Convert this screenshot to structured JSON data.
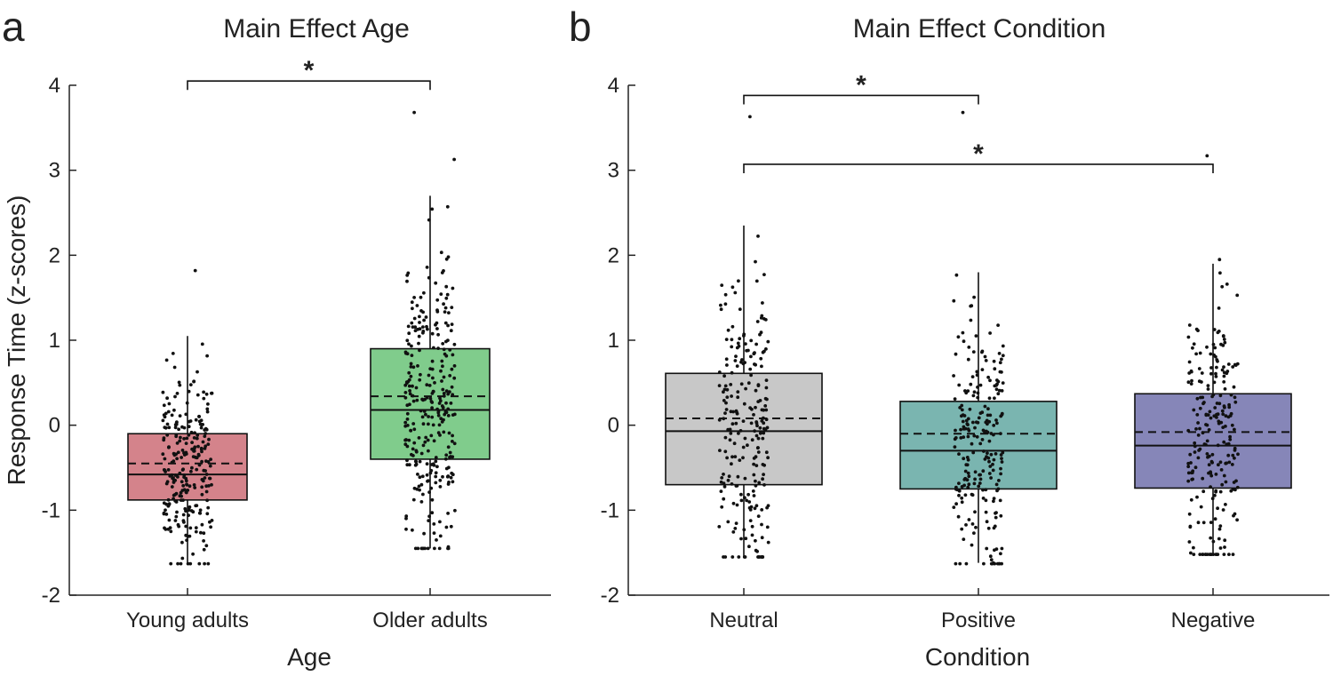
{
  "chart_data": [
    {
      "panel_label": "a",
      "type": "box",
      "title": "Main Effect Age",
      "xlabel": "Age",
      "ylabel": "Response Time (z-scores)",
      "ylim": [
        -2,
        4
      ],
      "yticks": [
        -2,
        -1,
        0,
        1,
        2,
        3,
        4
      ],
      "categories": [
        "Young adults",
        "Older adults"
      ],
      "boxes": [
        {
          "name": "Young adults",
          "color": "#d4838b",
          "q1": -0.88,
          "median": -0.58,
          "mean": -0.45,
          "q3": -0.1,
          "whisker_low": -1.62,
          "whisker_high": 1.05,
          "n_points": 260,
          "point_max": 1.82,
          "point_min": -1.63
        },
        {
          "name": "Older adults",
          "color": "#80cc8c",
          "q1": -0.4,
          "median": 0.18,
          "mean": 0.34,
          "q3": 0.9,
          "whisker_low": -1.45,
          "whisker_high": 2.7,
          "n_points": 300,
          "point_max": 3.68,
          "point_min": -1.45
        }
      ],
      "significance": [
        {
          "from": 0,
          "to": 1,
          "y": 4.05,
          "label": "*"
        }
      ]
    },
    {
      "panel_label": "b",
      "type": "box",
      "title": "Main Effect Condition",
      "xlabel": "Condition",
      "ylabel": "",
      "ylim": [
        -2,
        4
      ],
      "yticks": [
        -2,
        -1,
        0,
        1,
        2,
        3,
        4
      ],
      "categories": [
        "Neutral",
        "Positive",
        "Negative"
      ],
      "boxes": [
        {
          "name": "Neutral",
          "color": "#c8c8c8",
          "q1": -0.7,
          "median": -0.07,
          "mean": 0.08,
          "q3": 0.61,
          "whisker_low": -1.55,
          "whisker_high": 2.35,
          "n_points": 230,
          "point_max": 3.63,
          "point_min": -1.55
        },
        {
          "name": "Positive",
          "color": "#7ab5b0",
          "q1": -0.75,
          "median": -0.3,
          "mean": -0.1,
          "q3": 0.28,
          "whisker_low": -1.62,
          "whisker_high": 1.8,
          "n_points": 230,
          "point_max": 3.68,
          "point_min": -1.63
        },
        {
          "name": "Negative",
          "color": "#8686b8",
          "q1": -0.74,
          "median": -0.24,
          "mean": -0.08,
          "q3": 0.37,
          "whisker_low": -1.52,
          "whisker_high": 1.9,
          "n_points": 230,
          "point_max": 3.17,
          "point_min": -1.52
        }
      ],
      "significance": [
        {
          "from": 0,
          "to": 1,
          "y": 3.88,
          "label": "*"
        },
        {
          "from": 0,
          "to": 2,
          "y": 3.07,
          "label": "*"
        }
      ]
    }
  ]
}
